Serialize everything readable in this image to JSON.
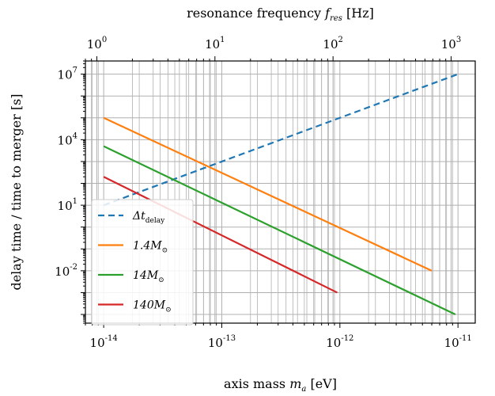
{
  "chart_data": {
    "type": "line",
    "title": "",
    "xlabel": {
      "prefix": "axis mass ",
      "symbol": "m",
      "subscript": "a",
      "suffix": " [eV]"
    },
    "ylabel": "delay time / time to merger [s]",
    "top_xlabel": {
      "prefix": "resonance frequency ",
      "symbol": "f",
      "subscript": "res",
      "suffix": " [Hz]"
    },
    "xscale": "log",
    "yscale": "log",
    "xlim": [
      7e-15,
      1.4e-11
    ],
    "ylim": [
      4e-05,
      40000000
    ],
    "top_xlim": [
      0.8,
      1600
    ],
    "grid": true,
    "grid_minor": true,
    "x_ticks": [
      {
        "value": 1e-14,
        "base": "10",
        "exp": "-14"
      },
      {
        "value": 1e-13,
        "base": "10",
        "exp": "-13"
      },
      {
        "value": 1e-12,
        "base": "10",
        "exp": "-12"
      },
      {
        "value": 1e-11,
        "base": "10",
        "exp": "-11"
      }
    ],
    "y_ticks": [
      {
        "value": 0.01,
        "base": "10",
        "exp": "-2"
      },
      {
        "value": 10,
        "base": "10",
        "exp": "1"
      },
      {
        "value": 10000,
        "base": "10",
        "exp": "4"
      },
      {
        "value": 10000000,
        "base": "10",
        "exp": "7"
      }
    ],
    "top_ticks": [
      {
        "value": 1,
        "base": "10",
        "exp": "0"
      },
      {
        "value": 10,
        "base": "10",
        "exp": "1"
      },
      {
        "value": 100,
        "base": "10",
        "exp": "2"
      },
      {
        "value": 1000,
        "base": "10",
        "exp": "3"
      }
    ],
    "legend_placement": "lower-left",
    "series": [
      {
        "name": "Δt_delay",
        "label_main": "Δt",
        "label_sub": "delay",
        "color": "#1f77b4",
        "dash": true,
        "points": [
          [
            1e-14,
            10
          ],
          [
            1e-11,
            10000000
          ]
        ]
      },
      {
        "name": "1.4M_⊙",
        "label_main": "1.4M",
        "label_sub": "⊙",
        "color": "#ff7f0e",
        "dash": false,
        "points": [
          [
            1e-14,
            100000
          ],
          [
            6e-12,
            0.01
          ]
        ]
      },
      {
        "name": "14M_⊙",
        "label_main": "14M",
        "label_sub": "⊙",
        "color": "#2ca02c",
        "dash": false,
        "points": [
          [
            1e-14,
            5000
          ],
          [
            9.5e-12,
            0.0001
          ]
        ]
      },
      {
        "name": "140M_⊙",
        "label_main": "140M",
        "label_sub": "⊙",
        "color": "#d62728",
        "dash": false,
        "points": [
          [
            1e-14,
            200
          ],
          [
            9.5e-13,
            0.001
          ]
        ]
      }
    ]
  }
}
